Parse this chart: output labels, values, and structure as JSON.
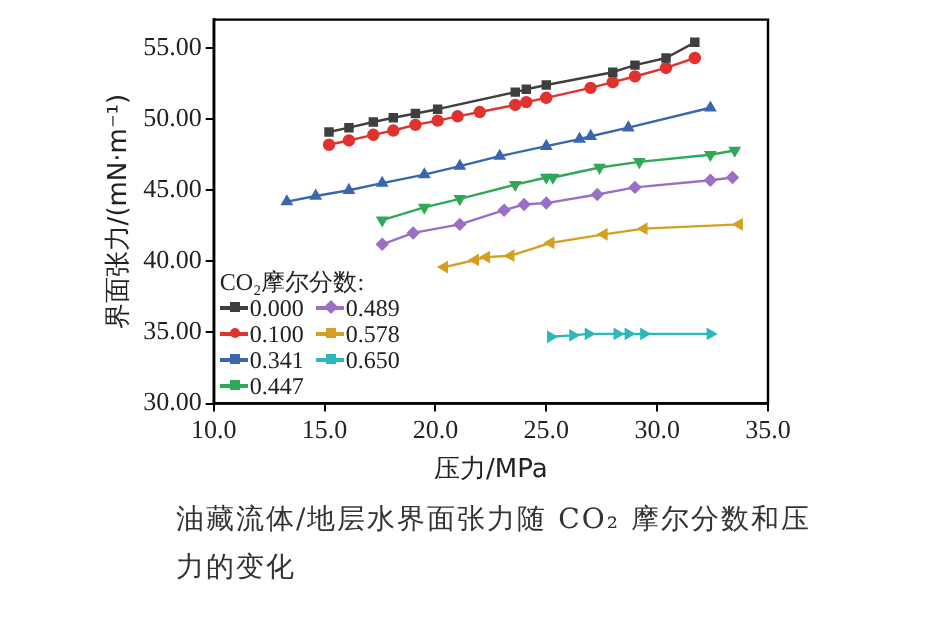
{
  "chart_data": {
    "type": "line",
    "xlabel": "压力/MPa",
    "ylabel": "界面张力/(mN·m⁻¹)",
    "legend_title": "CO₂摩尔分数:",
    "legend": "bottom left",
    "xlim": [
      10,
      35
    ],
    "xticks": [
      {
        "value": 10,
        "label": "10.0"
      },
      {
        "value": 15,
        "label": "15.0"
      },
      {
        "value": 20,
        "label": "20.0"
      },
      {
        "value": 25,
        "label": "25.0"
      },
      {
        "value": 30,
        "label": "30.0"
      },
      {
        "value": 35,
        "label": "35.0"
      }
    ],
    "ylim": [
      30,
      57
    ],
    "yticks": [
      {
        "value": 30,
        "label": "30.00"
      },
      {
        "value": 35,
        "label": "35.00"
      },
      {
        "value": 40,
        "label": "40.00"
      },
      {
        "value": 45,
        "label": "45.00"
      },
      {
        "value": 50,
        "label": "50.00"
      },
      {
        "value": 55,
        "label": "55.00"
      }
    ],
    "line_style": "solid",
    "series": [
      {
        "name": "0.000",
        "color": "#3f3f3f",
        "marker": "square",
        "x": [
          15.2,
          16.1,
          17.2,
          18.1,
          19.1,
          20.1,
          23.6,
          24.1,
          25.0,
          28.0,
          29.0,
          30.4,
          31.7
        ],
        "values": [
          49.1,
          49.4,
          49.8,
          50.1,
          50.4,
          50.7,
          51.9,
          52.1,
          52.4,
          53.3,
          53.8,
          54.3,
          55.4
        ]
      },
      {
        "name": "0.100",
        "color": "#e0332f",
        "marker": "circle",
        "x": [
          15.2,
          16.1,
          17.2,
          18.1,
          19.1,
          20.1,
          21.0,
          22.0,
          23.6,
          24.1,
          25.0,
          27.0,
          28.0,
          29.0,
          30.4,
          31.7
        ],
        "values": [
          48.2,
          48.5,
          48.9,
          49.2,
          49.6,
          49.9,
          50.2,
          50.5,
          51.0,
          51.2,
          51.5,
          52.2,
          52.6,
          53.0,
          53.6,
          54.3
        ]
      },
      {
        "name": "0.341",
        "color": "#3a66b0",
        "marker": "triangle",
        "x": [
          13.3,
          14.6,
          16.1,
          17.6,
          19.5,
          21.1,
          22.9,
          25.0,
          26.5,
          27.0,
          28.7,
          32.4
        ],
        "values": [
          44.2,
          44.6,
          45.0,
          45.5,
          46.1,
          46.7,
          47.4,
          48.1,
          48.6,
          48.8,
          49.4,
          50.8
        ]
      },
      {
        "name": "0.447",
        "color": "#2fa858",
        "marker": "triangle-down",
        "x": [
          17.6,
          19.5,
          21.1,
          23.6,
          25.0,
          25.3,
          27.4,
          29.2,
          32.4,
          33.5
        ],
        "values": [
          42.9,
          43.8,
          44.4,
          45.4,
          45.9,
          45.9,
          46.6,
          47.0,
          47.5,
          47.8
        ]
      },
      {
        "name": "0.489",
        "color": "#9b6fc6",
        "marker": "diamond",
        "x": [
          17.6,
          19.0,
          21.1,
          23.1,
          24.0,
          25.0,
          27.3,
          29.0,
          32.4,
          33.4
        ],
        "values": [
          41.2,
          42.0,
          42.6,
          43.6,
          44.0,
          44.1,
          44.7,
          45.2,
          45.7,
          45.9
        ]
      },
      {
        "name": "0.578",
        "color": "#d4a020",
        "marker": "triangle-left",
        "x": [
          20.4,
          21.8,
          22.3,
          23.4,
          25.2,
          27.6,
          29.4,
          33.7
        ],
        "values": [
          39.6,
          40.1,
          40.3,
          40.4,
          41.3,
          41.9,
          42.3,
          42.6
        ]
      },
      {
        "name": "0.650",
        "color": "#2fb8b8",
        "marker": "triangle-right",
        "x": [
          25.2,
          26.2,
          26.9,
          28.2,
          28.7,
          29.4,
          32.4
        ],
        "values": [
          34.7,
          34.8,
          34.9,
          34.9,
          34.9,
          34.9,
          34.9
        ]
      }
    ],
    "annotations": [
      "油藏流体/地层水界面张力随 CO₂ 摩尔分数和压力的变化"
    ]
  }
}
